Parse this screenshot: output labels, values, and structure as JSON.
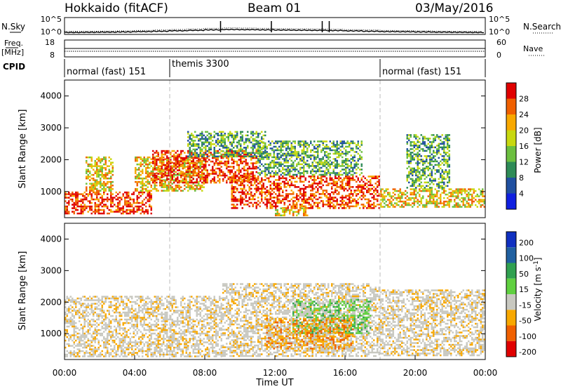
{
  "header": {
    "station": "Hokkaido (fitACF)",
    "beam": "Beam 01",
    "date": "03/May/2016"
  },
  "noise_panel": {
    "left_label": "N.Sky",
    "right_label": "N.Search",
    "left_ticks": [
      "10^5",
      "10^0"
    ],
    "right_ticks": [
      "10^5",
      "10^0"
    ]
  },
  "freq_panel": {
    "left_label": "Freq.",
    "left_unit": "[MHz]",
    "left_ticks": [
      "18",
      "8"
    ],
    "right_label": "Nave",
    "right_ticks": [
      "60",
      "0"
    ]
  },
  "cpid_panel": {
    "label": "CPID",
    "modes": [
      {
        "name": "normal (fast) 151",
        "start_hour": 0,
        "end_hour": 6
      },
      {
        "name": "themis 3300",
        "start_hour": 6,
        "end_hour": 18
      },
      {
        "name": "normal (fast) 151",
        "start_hour": 18,
        "end_hour": 24
      }
    ]
  },
  "chart_data": [
    {
      "type": "heatmap",
      "title": "",
      "ylabel": "Slant Range [km]",
      "xlim": [
        0,
        24
      ],
      "ylim": [
        180,
        4500
      ],
      "yticks": [
        1000,
        2000,
        3000,
        4000
      ],
      "colorbar": {
        "label": "Power [dB]",
        "ticks": [
          4,
          8,
          12,
          16,
          20,
          24,
          28
        ],
        "range": [
          0,
          30
        ],
        "colors": [
          "#1020e0",
          "#2050a0",
          "#2e8b57",
          "#6cbf40",
          "#c8d810",
          "#f8a800",
          "#f06000",
          "#e00000"
        ]
      },
      "echo_regions": [
        {
          "t0": 0.0,
          "t1": 5.0,
          "r0": 300,
          "r1": 1000,
          "level": "high"
        },
        {
          "t0": 1.2,
          "t1": 2.8,
          "r0": 1000,
          "r1": 2100,
          "level": "med"
        },
        {
          "t0": 4.0,
          "t1": 8.0,
          "r0": 1000,
          "r1": 2100,
          "level": "med"
        },
        {
          "t0": 5.0,
          "t1": 11.0,
          "r0": 1300,
          "r1": 2300,
          "level": "high"
        },
        {
          "t0": 7.0,
          "t1": 11.5,
          "r0": 2100,
          "r1": 2900,
          "level": "low"
        },
        {
          "t0": 9.5,
          "t1": 18.0,
          "r0": 500,
          "r1": 1500,
          "level": "high"
        },
        {
          "t0": 11.0,
          "t1": 17.0,
          "r0": 1500,
          "r1": 2600,
          "level": "low"
        },
        {
          "t0": 12.0,
          "t1": 13.8,
          "r0": 250,
          "r1": 500,
          "level": "med"
        },
        {
          "t0": 18.0,
          "t1": 24.0,
          "r0": 500,
          "r1": 1100,
          "level": "med"
        },
        {
          "t0": 19.5,
          "t1": 22.0,
          "r0": 1100,
          "r1": 2800,
          "level": "low"
        }
      ]
    },
    {
      "type": "heatmap",
      "title": "",
      "ylabel": "Slant Range [km]",
      "xlabel": "Time UT",
      "xlim": [
        0,
        24
      ],
      "xticks": [
        "00:00",
        "04:00",
        "08:00",
        "12:00",
        "16:00",
        "20:00",
        "00:00"
      ],
      "ylim": [
        180,
        4500
      ],
      "yticks": [
        1000,
        2000,
        3000,
        4000
      ],
      "colorbar": {
        "label": "Velocity [m s^-1]",
        "ticks": [
          200,
          100,
          50,
          15,
          -15,
          -50,
          -100,
          -200
        ],
        "colors": [
          "#1030c0",
          "#2060a0",
          "#30a050",
          "#60d040",
          "#c8c8c0",
          "#f8a800",
          "#f06000",
          "#e00000"
        ]
      },
      "echo_regions": [
        {
          "t0": 0.0,
          "t1": 9.0,
          "r0": 300,
          "r1": 2200,
          "level": "grey"
        },
        {
          "t0": 9.0,
          "t1": 18.0,
          "r0": 300,
          "r1": 2600,
          "level": "grey"
        },
        {
          "t0": 13.0,
          "t1": 17.5,
          "r0": 1000,
          "r1": 2100,
          "level": "green"
        },
        {
          "t0": 11.5,
          "t1": 16.5,
          "r0": 500,
          "r1": 1500,
          "level": "orange"
        },
        {
          "t0": 18.0,
          "t1": 24.0,
          "r0": 300,
          "r1": 2400,
          "level": "grey"
        }
      ]
    }
  ],
  "noise_series": {
    "n_sky_level": [
      0.18,
      0.2,
      0.22,
      0.25,
      0.3,
      0.35,
      0.42,
      0.48,
      0.55,
      0.6,
      0.58,
      0.55,
      0.52,
      0.5,
      0.48,
      0.45,
      0.4,
      0.35,
      0.3,
      0.28,
      0.25,
      0.22,
      0.2,
      0.18,
      0.18
    ]
  }
}
